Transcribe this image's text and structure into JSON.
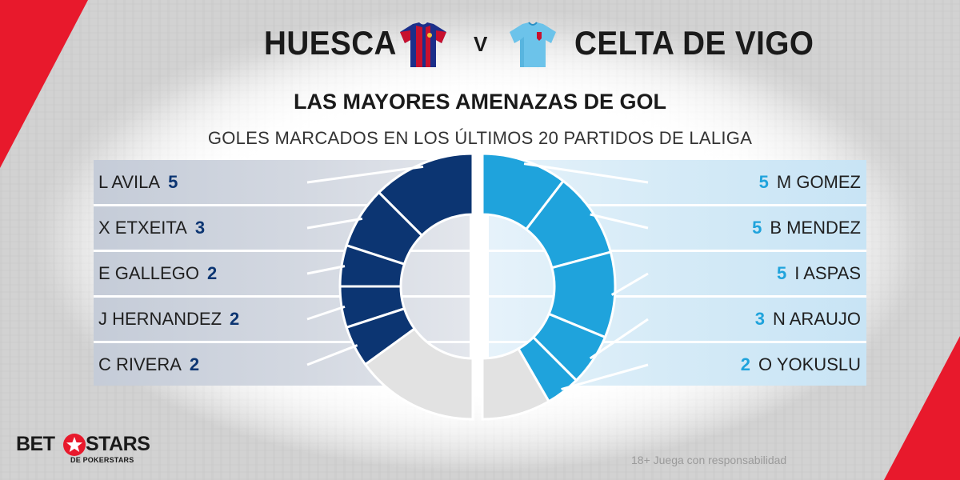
{
  "header": {
    "home_team": "HUESCA",
    "vs": "V",
    "away_team": "CELTA DE VIGO",
    "title": "LAS MAYORES AMENAZAS DE GOL",
    "subtitle": "GOLES MARCADOS EN LOS ÚLTIMOS 20 PARTIDOS DE LALIGA"
  },
  "colors": {
    "home": "#0c3572",
    "away": "#1fa3dc",
    "rest": "#e2e2e2",
    "accent": "#e8192c"
  },
  "icons": {
    "home_shirt": "huesca-shirt-icon",
    "away_shirt": "celta-shirt-icon",
    "logo_star": "star-icon"
  },
  "chart_data": [
    {
      "type": "pie",
      "team": "HUESCA",
      "donut": true,
      "half": "left",
      "series": [
        {
          "name": "L AVILA",
          "value": 5
        },
        {
          "name": "X ETXEITA",
          "value": 3
        },
        {
          "name": "E GALLEGO",
          "value": 2
        },
        {
          "name": "J HERNANDEZ",
          "value": 2
        },
        {
          "name": "C RIVERA",
          "value": 2
        }
      ],
      "remainder": 6,
      "total_fraction_units": 20
    },
    {
      "type": "pie",
      "team": "CELTA DE VIGO",
      "donut": true,
      "half": "right",
      "series": [
        {
          "name": "M GOMEZ",
          "value": 5
        },
        {
          "name": "B MENDEZ",
          "value": 5
        },
        {
          "name": "I ASPAS",
          "value": 5
        },
        {
          "name": "N ARAUJO",
          "value": 3
        },
        {
          "name": "O YOKUSLU",
          "value": 2
        }
      ],
      "remainder": 4,
      "total_fraction_units": 24
    }
  ],
  "footer": {
    "logo_bet": "BET",
    "logo_stars": "STARS",
    "logo_sub": "DE POKERSTARS",
    "disclaimer": "18+ Juega con responsabilidad"
  }
}
